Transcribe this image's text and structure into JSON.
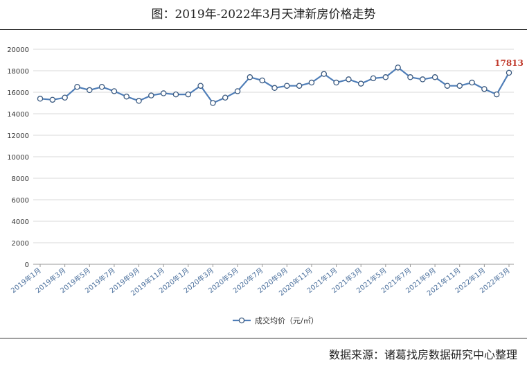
{
  "title": "图：2019年-2022年3月天津新房价格走势",
  "source": "数据来源：诸葛找房数据研究中心整理",
  "chart_data": {
    "type": "line",
    "ylim": [
      0,
      20000
    ],
    "yticks": [
      0,
      2000,
      4000,
      6000,
      8000,
      10000,
      12000,
      14000,
      16000,
      18000,
      20000
    ],
    "grid": true,
    "legend_position": "bottom",
    "categories": [
      "2019年1月",
      "2019年2月",
      "2019年3月",
      "2019年4月",
      "2019年5月",
      "2019年6月",
      "2019年7月",
      "2019年8月",
      "2019年9月",
      "2019年10月",
      "2019年11月",
      "2019年12月",
      "2020年1月",
      "2020年2月",
      "2020年3月",
      "2020年4月",
      "2020年5月",
      "2020年6月",
      "2020年7月",
      "2020年8月",
      "2020年9月",
      "2020年10月",
      "2020年11月",
      "2020年12月",
      "2021年1月",
      "2021年2月",
      "2021年3月",
      "2021年4月",
      "2021年5月",
      "2021年6月",
      "2021年7月",
      "2021年8月",
      "2021年9月",
      "2021年10月",
      "2021年11月",
      "2021年12月",
      "2022年1月",
      "2022年2月",
      "2022年3月"
    ],
    "xtick_labels": [
      "2019年1月",
      "2019年3月",
      "2019年5月",
      "2019年7月",
      "2019年9月",
      "2019年11月",
      "2020年1月",
      "2020年3月",
      "2020年5月",
      "2020年7月",
      "2020年9月",
      "2020年11月",
      "2021年1月",
      "2021年3月",
      "2021年5月",
      "2021年7月",
      "2021年9月",
      "2021年11月",
      "2022年1月",
      "2022年3月"
    ],
    "series": [
      {
        "name": "成交均价（元/㎡）",
        "color": "#4f7eb8",
        "values": [
          15400,
          15300,
          15500,
          16500,
          16200,
          16500,
          16100,
          15600,
          15200,
          15700,
          15900,
          15800,
          15800,
          16600,
          15000,
          15500,
          16100,
          17400,
          17100,
          16400,
          16600,
          16600,
          16900,
          17700,
          16900,
          17200,
          16800,
          17300,
          17400,
          18300,
          17400,
          17200,
          17400,
          16600,
          16600,
          16900,
          16300,
          15800,
          17813
        ]
      }
    ],
    "data_labels": [
      {
        "index": 38,
        "text": "17813",
        "color": "#c0392b"
      }
    ]
  }
}
